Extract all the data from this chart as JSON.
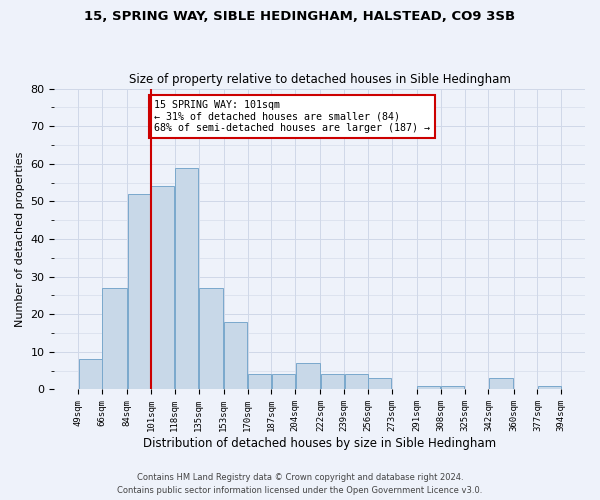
{
  "title1": "15, SPRING WAY, SIBLE HEDINGHAM, HALSTEAD, CO9 3SB",
  "title2": "Size of property relative to detached houses in Sible Hedingham",
  "xlabel": "Distribution of detached houses by size in Sible Hedingham",
  "ylabel": "Number of detached properties",
  "bar_edges": [
    49,
    66,
    84,
    101,
    118,
    135,
    153,
    170,
    187,
    204,
    222,
    239,
    256,
    273,
    291,
    308,
    325,
    342,
    360,
    377,
    394
  ],
  "bar_heights": [
    8,
    27,
    52,
    54,
    59,
    27,
    18,
    4,
    4,
    7,
    4,
    4,
    3,
    0,
    1,
    1,
    0,
    3,
    0,
    1
  ],
  "bar_color": "#c8d8e8",
  "bar_edgecolor": "#7aa8cc",
  "grid_color": "#d0d8e8",
  "vline_x": 101,
  "vline_color": "#cc0000",
  "annotation_text": "15 SPRING WAY: 101sqm\n← 31% of detached houses are smaller (84)\n68% of semi-detached houses are larger (187) →",
  "annotation_box_edgecolor": "#cc0000",
  "annotation_box_facecolor": "#ffffff",
  "ylim": [
    0,
    80
  ],
  "yticks": [
    0,
    10,
    20,
    30,
    40,
    50,
    60,
    70,
    80
  ],
  "tick_labels": [
    "49sqm",
    "66sqm",
    "84sqm",
    "101sqm",
    "118sqm",
    "135sqm",
    "153sqm",
    "170sqm",
    "187sqm",
    "204sqm",
    "222sqm",
    "239sqm",
    "256sqm",
    "273sqm",
    "291sqm",
    "308sqm",
    "325sqm",
    "342sqm",
    "360sqm",
    "377sqm",
    "394sqm"
  ],
  "footer1": "Contains HM Land Registry data © Crown copyright and database right 2024.",
  "footer2": "Contains public sector information licensed under the Open Government Licence v3.0.",
  "bg_color": "#eef2fa"
}
